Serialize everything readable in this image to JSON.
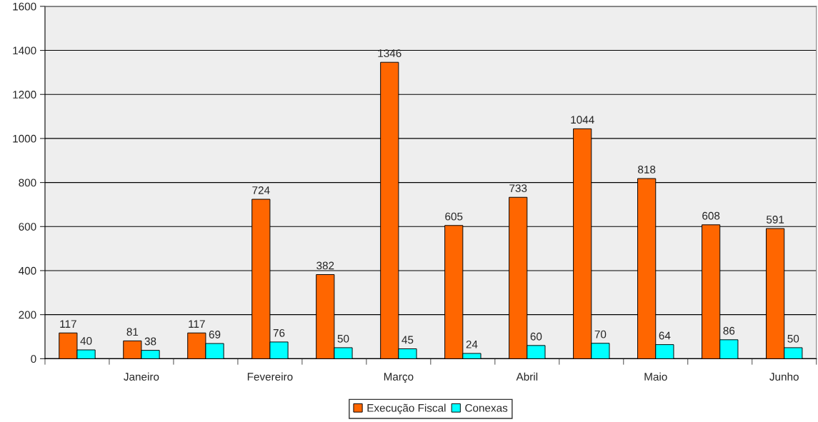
{
  "chart_data": {
    "type": "bar",
    "categories": [
      null,
      "Janeiro",
      null,
      "Fevereiro",
      null,
      "Março",
      null,
      "Abril",
      null,
      "Maio",
      null,
      "Junho"
    ],
    "series": [
      {
        "name": "Execução Fiscal",
        "color": "#ff6600",
        "values": [
          117,
          81,
          117,
          724,
          382,
          1346,
          605,
          733,
          1044,
          818,
          608,
          591
        ]
      },
      {
        "name": "Conexas",
        "color": "#00ffff",
        "values": [
          40,
          38,
          69,
          76,
          50,
          45,
          24,
          60,
          70,
          64,
          86,
          50
        ]
      }
    ],
    "ylim": [
      0,
      1600
    ],
    "yticks": [
      0,
      200,
      400,
      600,
      800,
      1000,
      1200,
      1400,
      1600
    ],
    "grid": "y",
    "legend": "bottom",
    "data_labels": true
  }
}
